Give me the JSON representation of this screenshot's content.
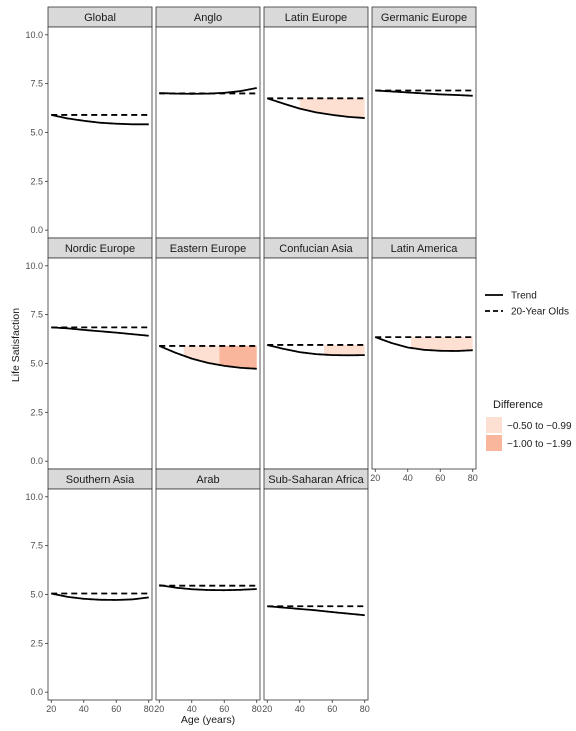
{
  "chart_data": {
    "type": "line",
    "xlabel": "Age (years)",
    "ylabel": "Life Satisfaction",
    "xlim": [
      18,
      82
    ],
    "ylim": [
      -0.4,
      10.4
    ],
    "x_ticks": [
      20,
      40,
      60,
      80
    ],
    "y_ticks": [
      0.0,
      2.5,
      5.0,
      7.5,
      10.0
    ],
    "y_tick_labels": [
      "0.0",
      "2.5",
      "5.0",
      "7.5",
      "10.0"
    ],
    "grid": false,
    "legend": {
      "placement": "right",
      "lines": [
        {
          "name": "Trend",
          "style": "solid"
        },
        {
          "name": "20-Year Olds",
          "style": "dashed"
        }
      ],
      "fill_title": "Difference",
      "fills": [
        {
          "name": "−0.50 to −0.99",
          "color": "#fde0d2"
        },
        {
          "name": "−1.00 to −1.99",
          "color": "#f9b69c"
        }
      ]
    },
    "panels": [
      {
        "title": "Global",
        "baseline": 5.9,
        "trend": [
          [
            20,
            5.9
          ],
          [
            30,
            5.72
          ],
          [
            40,
            5.6
          ],
          [
            50,
            5.5
          ],
          [
            60,
            5.45
          ],
          [
            70,
            5.42
          ],
          [
            80,
            5.42
          ]
        ],
        "shading": []
      },
      {
        "title": "Anglo",
        "baseline": 7.0,
        "trend": [
          [
            20,
            7.02
          ],
          [
            30,
            6.99
          ],
          [
            40,
            6.98
          ],
          [
            50,
            6.99
          ],
          [
            60,
            7.03
          ],
          [
            70,
            7.12
          ],
          [
            80,
            7.28
          ]
        ],
        "shading": []
      },
      {
        "title": "Latin Europe",
        "baseline": 6.75,
        "trend": [
          [
            20,
            6.75
          ],
          [
            30,
            6.48
          ],
          [
            40,
            6.22
          ],
          [
            50,
            6.03
          ],
          [
            60,
            5.9
          ],
          [
            70,
            5.8
          ],
          [
            80,
            5.74
          ]
        ],
        "shading": [
          {
            "from": 40,
            "to": 80,
            "level": 0
          }
        ]
      },
      {
        "title": "Germanic Europe",
        "baseline": 7.15,
        "trend": [
          [
            20,
            7.15
          ],
          [
            30,
            7.1
          ],
          [
            40,
            7.05
          ],
          [
            50,
            7.0
          ],
          [
            60,
            6.95
          ],
          [
            70,
            6.92
          ],
          [
            80,
            6.88
          ]
        ],
        "shading": []
      },
      {
        "title": "Nordic Europe",
        "baseline": 6.85,
        "trend": [
          [
            20,
            6.85
          ],
          [
            30,
            6.8
          ],
          [
            40,
            6.72
          ],
          [
            50,
            6.65
          ],
          [
            60,
            6.58
          ],
          [
            70,
            6.5
          ],
          [
            80,
            6.42
          ]
        ],
        "shading": []
      },
      {
        "title": "Eastern Europe",
        "baseline": 5.9,
        "trend": [
          [
            20,
            5.9
          ],
          [
            30,
            5.55
          ],
          [
            40,
            5.25
          ],
          [
            50,
            5.03
          ],
          [
            60,
            4.88
          ],
          [
            70,
            4.78
          ],
          [
            80,
            4.73
          ]
        ],
        "shading": [
          {
            "from": 35,
            "to": 57,
            "level": 0
          },
          {
            "from": 57,
            "to": 80,
            "level": 1
          }
        ]
      },
      {
        "title": "Confucian Asia",
        "baseline": 5.95,
        "trend": [
          [
            20,
            5.95
          ],
          [
            30,
            5.75
          ],
          [
            40,
            5.58
          ],
          [
            50,
            5.48
          ],
          [
            60,
            5.43
          ],
          [
            70,
            5.42
          ],
          [
            80,
            5.43
          ]
        ],
        "shading": [
          {
            "from": 55,
            "to": 80,
            "level": 0
          }
        ]
      },
      {
        "title": "Latin America",
        "baseline": 6.35,
        "trend": [
          [
            20,
            6.35
          ],
          [
            30,
            6.05
          ],
          [
            40,
            5.82
          ],
          [
            50,
            5.7
          ],
          [
            60,
            5.65
          ],
          [
            70,
            5.64
          ],
          [
            80,
            5.68
          ]
        ],
        "shading": [
          {
            "from": 42,
            "to": 80,
            "level": 0
          }
        ]
      },
      {
        "title": "Southern Asia",
        "baseline": 5.05,
        "trend": [
          [
            20,
            5.05
          ],
          [
            30,
            4.88
          ],
          [
            40,
            4.78
          ],
          [
            50,
            4.73
          ],
          [
            60,
            4.72
          ],
          [
            70,
            4.75
          ],
          [
            80,
            4.85
          ]
        ],
        "shading": []
      },
      {
        "title": "Arab",
        "baseline": 5.45,
        "trend": [
          [
            20,
            5.48
          ],
          [
            30,
            5.35
          ],
          [
            40,
            5.27
          ],
          [
            50,
            5.23
          ],
          [
            60,
            5.22
          ],
          [
            70,
            5.24
          ],
          [
            80,
            5.28
          ]
        ],
        "shading": []
      },
      {
        "title": "Sub-Saharan Africa",
        "baseline": 4.4,
        "trend": [
          [
            20,
            4.4
          ],
          [
            30,
            4.33
          ],
          [
            40,
            4.26
          ],
          [
            50,
            4.19
          ],
          [
            60,
            4.1
          ],
          [
            70,
            4.02
          ],
          [
            80,
            3.94
          ]
        ],
        "shading": []
      }
    ]
  }
}
